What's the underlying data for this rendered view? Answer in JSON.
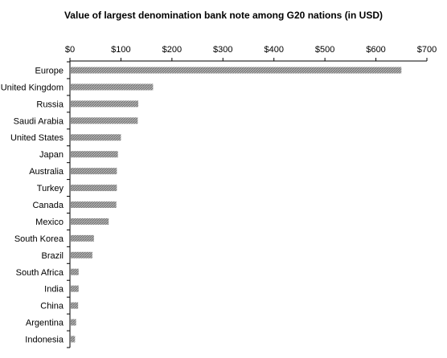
{
  "chart_data": {
    "type": "bar",
    "orientation": "horizontal",
    "title": "Value of largest denomination bank note among G20 nations (in USD)",
    "xlabel": "",
    "ylabel": "",
    "axis_position": "top",
    "xlim": [
      0,
      700
    ],
    "xticks": [
      0,
      100,
      200,
      300,
      400,
      500,
      600,
      700
    ],
    "xtick_labels": [
      "$0",
      "$100",
      "$200",
      "$300",
      "$400",
      "$500",
      "$600",
      "$700"
    ],
    "grid": false,
    "legend": "none",
    "bar_color": "#9a9a9a",
    "categories": [
      "Europe",
      "United Kingdom",
      "Russia",
      "Saudi Arabia",
      "United States",
      "Japan",
      "Australia",
      "Turkey",
      "Canada",
      "Mexico",
      "South Korea",
      "Brazil",
      "South Africa",
      "India",
      "China",
      "Argentina",
      "Indonesia"
    ],
    "values": [
      650,
      163,
      134,
      133,
      100,
      94,
      92,
      92,
      91,
      76,
      47,
      44,
      17,
      17,
      16,
      12,
      10
    ]
  }
}
